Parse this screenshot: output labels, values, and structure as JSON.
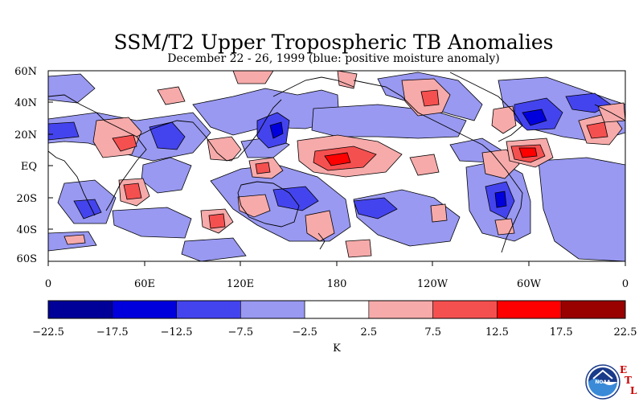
{
  "header": {
    "title": "SSM/T2 Upper Tropospheric TB Anomalies",
    "subtitle": "December 22 - 26, 1999 (blue: positive moisture anomaly)"
  },
  "map": {
    "lat_labels": [
      "60N",
      "40N",
      "20N",
      "EQ",
      "20S",
      "40S",
      "60S"
    ],
    "lon_labels": [
      "0",
      "60E",
      "120E",
      "180",
      "120W",
      "60W",
      "0"
    ]
  },
  "colorbar": {
    "tick_labels": [
      "-22.5",
      "-17.5",
      "-12.5",
      "-7.5",
      "-2.5",
      "2.5",
      "7.5",
      "12.5",
      "17.5",
      "22.5"
    ],
    "unit": "K",
    "colors": [
      "#000099",
      "#0000dd",
      "#4444ee",
      "#9999f2",
      "#ffffff",
      "#f7aaaa",
      "#f55050",
      "#ff0000",
      "#990000"
    ]
  },
  "logo": {
    "text": "NOAA",
    "etl": [
      "E",
      "T",
      "L"
    ]
  }
}
